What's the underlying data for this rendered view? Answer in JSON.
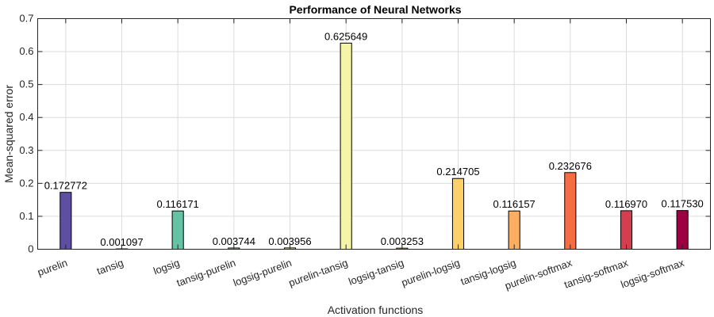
{
  "chart_data": {
    "type": "bar",
    "title": "Performance of Neural Networks",
    "xlabel": "Activation functions",
    "ylabel": "Mean-squared error",
    "ylim": [
      0,
      0.7
    ],
    "yticks": [
      0,
      0.1,
      0.2,
      0.3,
      0.4,
      0.5,
      0.6,
      0.7
    ],
    "grid": true,
    "categories": [
      "purelin",
      "tansig",
      "logsig",
      "tansig-purelin",
      "logsig-purelin",
      "purelin-tansig",
      "logsig-tansig",
      "purelin-logsig",
      "tansig-logsig",
      "purelin-softmax",
      "tansig-softmax",
      "logsig-softmax"
    ],
    "values": [
      0.172772,
      0.001097,
      0.116171,
      0.003744,
      0.003956,
      0.625649,
      0.003253,
      0.214705,
      0.116157,
      0.232676,
      0.11697,
      0.11753
    ],
    "value_labels": [
      "0.172772",
      "0.001097",
      "0.116171",
      "0.003744",
      "0.003956",
      "0.625649",
      "0.003253",
      "0.214705",
      "0.116157",
      "0.232676",
      "0.116970",
      "0.117530"
    ],
    "colors": [
      "#5e4fa2",
      "#3288bd",
      "#66c2a5",
      "#abdda4",
      "#e6f598",
      "#f5f5a8",
      "#fee08b",
      "#fdd06a",
      "#fdae61",
      "#f46d43",
      "#d53e4f",
      "#9e0142"
    ]
  }
}
